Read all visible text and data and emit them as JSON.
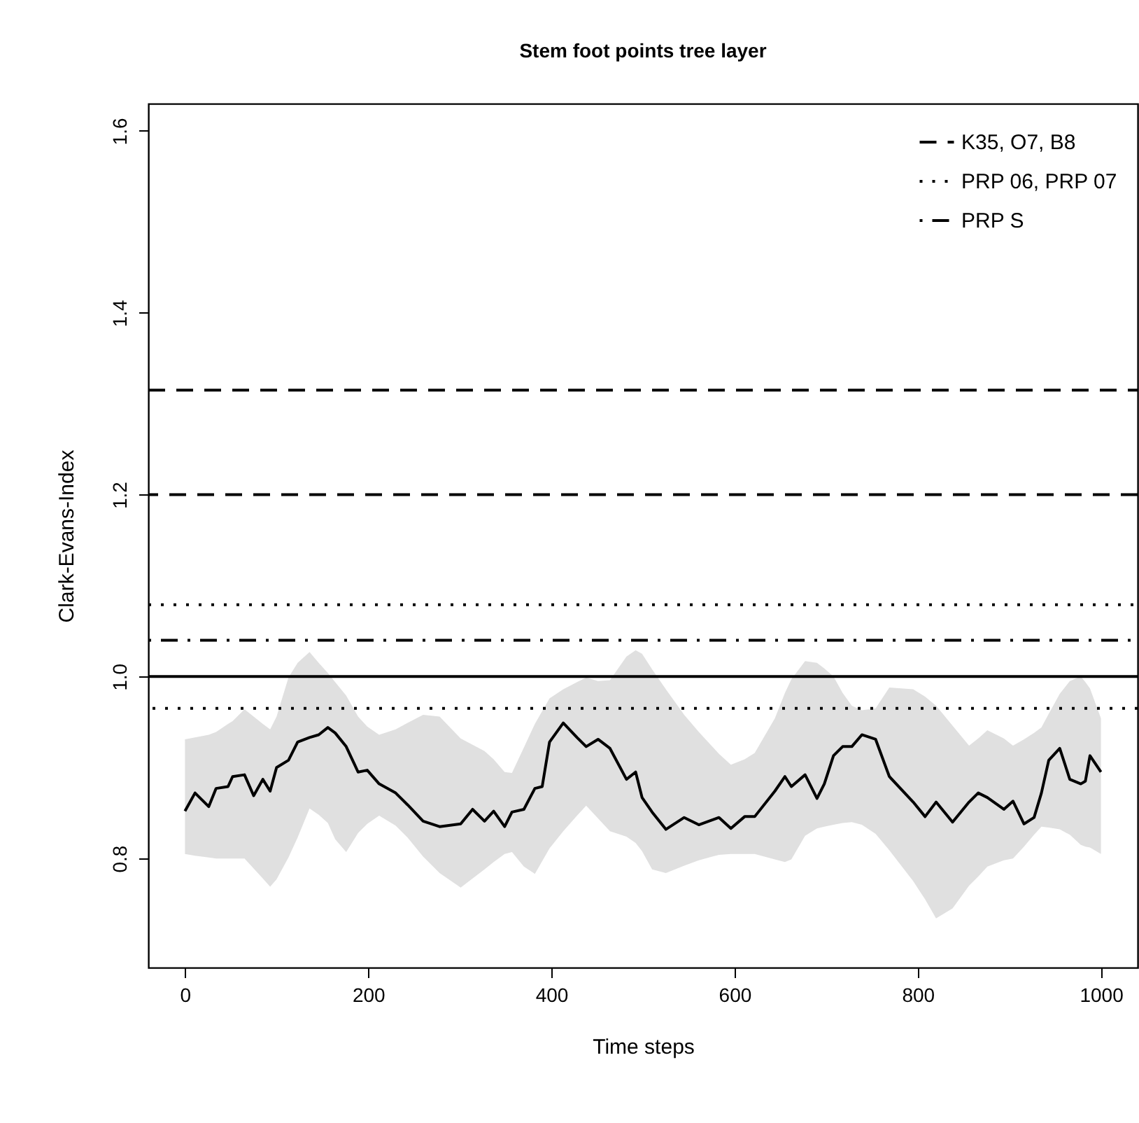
{
  "chart_data": {
    "type": "line",
    "title": "Stem foot points tree layer",
    "xlabel": "Time steps",
    "ylabel": "Clark-Evans-Index",
    "xlim": [
      -40,
      1040
    ],
    "xticks": [
      0,
      200,
      400,
      600,
      800,
      1000
    ],
    "ylim": [
      0.68,
      1.63
    ],
    "yticks": [
      {
        "value": 0.8,
        "label": "0.8"
      },
      {
        "value": 1.0,
        "label": "1.0"
      },
      {
        "value": 1.2,
        "label": "1.2"
      },
      {
        "value": 1.4,
        "label": "1.4"
      },
      {
        "value": 1.6,
        "label": "1.6"
      }
    ],
    "grid": false,
    "legend": "top right",
    "marker": "none",
    "ref_lines": [
      {
        "axis": "y",
        "value": 1.0,
        "color": "#000000",
        "line_style": "solid"
      },
      {
        "axis": "y",
        "value": 1.2,
        "color": "#000000",
        "line_style": "dashed"
      },
      {
        "axis": "y",
        "value": 0.965,
        "color": "#000000",
        "line_style": "dotted"
      }
    ],
    "series": [
      {
        "color": "#000000",
        "line_style": "solid",
        "x": [
          0,
          11,
          26,
          34,
          47,
          52,
          65,
          75,
          85,
          93,
          100,
          113,
          123,
          136,
          146,
          156,
          164,
          176,
          189,
          199,
          212,
          230,
          243,
          260,
          278,
          301,
          314,
          327,
          337,
          349,
          357,
          370,
          382,
          390,
          398,
          413,
          428,
          438,
          451,
          464,
          482,
          492,
          499,
          510,
          525,
          545,
          561,
          583,
          596,
          611,
          622,
          644,
          655,
          662,
          677,
          690,
          698,
          708,
          718,
          728,
          739,
          754,
          769,
          795,
          808,
          820,
          838,
          856,
          866,
          876,
          894,
          904,
          916,
          927,
          935,
          943,
          955,
          966,
          978,
          983,
          988,
          1000
        ],
        "values": [
          0.852,
          0.872,
          0.857,
          0.877,
          0.879,
          0.89,
          0.892,
          0.869,
          0.887,
          0.874,
          0.9,
          0.908,
          0.928,
          0.933,
          0.936,
          0.944,
          0.938,
          0.923,
          0.895,
          0.897,
          0.882,
          0.872,
          0.859,
          0.841,
          0.835,
          0.838,
          0.854,
          0.841,
          0.852,
          0.835,
          0.851,
          0.854,
          0.877,
          0.879,
          0.928,
          0.949,
          0.933,
          0.923,
          0.931,
          0.921,
          0.887,
          0.895,
          0.867,
          0.851,
          0.832,
          0.845,
          0.837,
          0.845,
          0.833,
          0.846,
          0.846,
          0.874,
          0.89,
          0.879,
          0.892,
          0.866,
          0.882,
          0.913,
          0.923,
          0.923,
          0.936,
          0.931,
          0.89,
          0.862,
          0.846,
          0.862,
          0.84,
          0.862,
          0.872,
          0.867,
          0.854,
          0.863,
          0.838,
          0.845,
          0.872,
          0.908,
          0.921,
          0.887,
          0.882,
          0.885,
          0.913,
          0.895
        ],
        "lower": [
          0.805,
          0.803,
          0.801,
          0.8,
          0.8,
          0.8,
          0.8,
          0.789,
          0.778,
          0.769,
          0.777,
          0.801,
          0.823,
          0.855,
          0.848,
          0.839,
          0.821,
          0.807,
          0.828,
          0.838,
          0.847,
          0.836,
          0.823,
          0.802,
          0.784,
          0.768,
          0.778,
          0.788,
          0.796,
          0.805,
          0.807,
          0.791,
          0.783,
          0.797,
          0.811,
          0.83,
          0.847,
          0.858,
          0.844,
          0.83,
          0.824,
          0.817,
          0.808,
          0.788,
          0.784,
          0.792,
          0.798,
          0.804,
          0.805,
          0.805,
          0.805,
          0.799,
          0.796,
          0.799,
          0.825,
          0.833,
          0.835,
          0.837,
          0.839,
          0.84,
          0.837,
          0.827,
          0.809,
          0.775,
          0.755,
          0.734,
          0.745,
          0.77,
          0.78,
          0.791,
          0.798,
          0.8,
          0.813,
          0.826,
          0.835,
          0.834,
          0.832,
          0.826,
          0.815,
          0.813,
          0.812,
          0.805
        ],
        "upper": [
          0.931,
          0.933,
          0.936,
          0.939,
          0.948,
          0.951,
          0.964,
          0.956,
          0.948,
          0.942,
          0.956,
          0.999,
          1.015,
          1.027,
          1.015,
          1.004,
          0.994,
          0.979,
          0.956,
          0.945,
          0.936,
          0.942,
          0.949,
          0.958,
          0.956,
          0.932,
          0.925,
          0.918,
          0.909,
          0.895,
          0.894,
          0.922,
          0.948,
          0.962,
          0.976,
          0.986,
          0.994,
          0.999,
          0.995,
          0.996,
          1.022,
          1.029,
          1.025,
          1.008,
          0.986,
          0.958,
          0.939,
          0.915,
          0.903,
          0.909,
          0.916,
          0.954,
          0.982,
          0.997,
          1.017,
          1.015,
          1.009,
          1.0,
          0.982,
          0.968,
          0.963,
          0.965,
          0.988,
          0.986,
          0.978,
          0.968,
          0.946,
          0.924,
          0.932,
          0.941,
          0.932,
          0.924,
          0.931,
          0.938,
          0.944,
          0.959,
          0.981,
          0.995,
          1.0,
          0.994,
          0.987,
          0.954
        ]
      },
      {
        "name": "K35, O7, B8",
        "color": "#000000",
        "line_style": "dashed",
        "x": [
          -40,
          1040
        ],
        "values": [
          1.315,
          1.315
        ]
      },
      {
        "name": "PRP 06, PRP 07",
        "color": "#000000",
        "line_style": "dotted",
        "x": [
          -40,
          1040
        ],
        "values": [
          1.079,
          1.079
        ]
      },
      {
        "name": "PRP S",
        "color": "#000000",
        "line_style": "dashdot",
        "x": [
          -40,
          1040
        ],
        "values": [
          1.04,
          1.04
        ]
      }
    ]
  }
}
